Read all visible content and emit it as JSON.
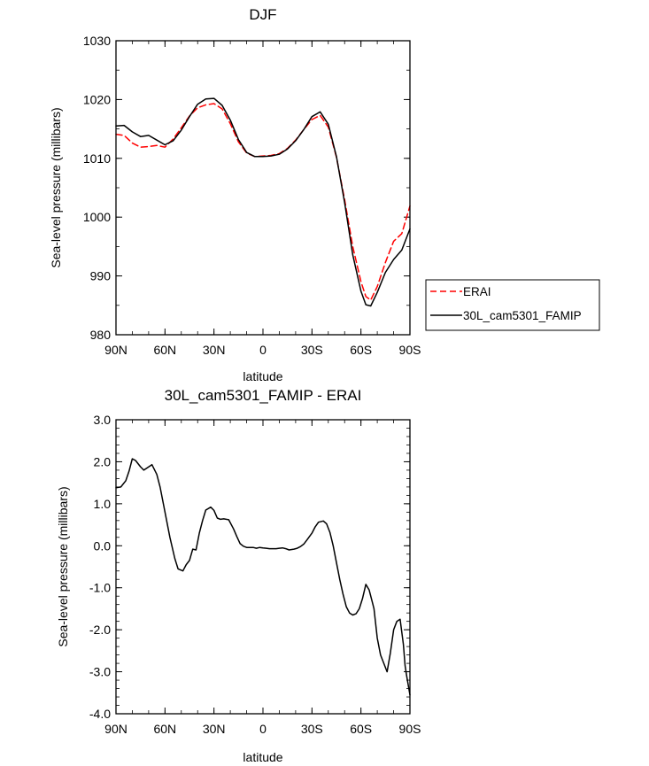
{
  "chart_data": [
    {
      "type": "line",
      "title": "DJF",
      "xlabel": "latitude",
      "ylabel": "Sea-level pressure (millibars)",
      "xlim": [
        -90,
        90
      ],
      "ylim": [
        980,
        1030
      ],
      "xticks": [
        {
          "value": -90,
          "label": "90N"
        },
        {
          "value": -60,
          "label": "60N"
        },
        {
          "value": -30,
          "label": "30N"
        },
        {
          "value": 0,
          "label": "0"
        },
        {
          "value": 30,
          "label": "30S"
        },
        {
          "value": 60,
          "label": "60S"
        },
        {
          "value": 90,
          "label": "90S"
        }
      ],
      "yticks": [
        {
          "value": 980,
          "label": "980"
        },
        {
          "value": 990,
          "label": "990"
        },
        {
          "value": 1000,
          "label": "1000"
        },
        {
          "value": 1010,
          "label": "1010"
        },
        {
          "value": 1020,
          "label": "1020"
        },
        {
          "value": 1030,
          "label": "1030"
        }
      ],
      "legend": {
        "position": "right"
      },
      "series": [
        {
          "name": "ERAI",
          "style": "dashed",
          "color": "#ff0000",
          "x": [
            -90,
            -85,
            -80,
            -75,
            -70,
            -65,
            -60,
            -55,
            -50,
            -45,
            -40,
            -35,
            -30,
            -25,
            -20,
            -15,
            -10,
            -5,
            0,
            5,
            10,
            15,
            20,
            25,
            30,
            35,
            40,
            45,
            50,
            55,
            60,
            63,
            66,
            70,
            75,
            80,
            85,
            90
          ],
          "y": [
            1014.1,
            1013.9,
            1012.6,
            1011.9,
            1012.0,
            1012.2,
            1011.9,
            1013.3,
            1015.2,
            1017.2,
            1018.6,
            1019.1,
            1019.3,
            1018.4,
            1015.9,
            1012.8,
            1010.9,
            1010.3,
            1010.4,
            1010.5,
            1010.8,
            1011.7,
            1013.1,
            1014.9,
            1016.6,
            1017.3,
            1015.3,
            1010.2,
            1003.0,
            995.0,
            989.0,
            986.5,
            985.9,
            988.2,
            992.3,
            995.9,
            997.2,
            1001.9
          ]
        },
        {
          "name": "30L_cam5301_FAMIP",
          "style": "solid",
          "color": "#000000",
          "x": [
            -90,
            -85,
            -80,
            -75,
            -70,
            -65,
            -60,
            -55,
            -50,
            -45,
            -40,
            -35,
            -30,
            -25,
            -20,
            -15,
            -10,
            -5,
            0,
            5,
            10,
            15,
            20,
            25,
            30,
            35,
            40,
            45,
            50,
            55,
            60,
            63,
            66,
            70,
            75,
            80,
            85,
            90
          ],
          "y": [
            1015.5,
            1015.6,
            1014.5,
            1013.7,
            1013.9,
            1013.1,
            1012.3,
            1013.0,
            1014.8,
            1017.1,
            1019.2,
            1020.1,
            1020.2,
            1019.0,
            1016.5,
            1013.2,
            1011.0,
            1010.3,
            1010.3,
            1010.4,
            1010.7,
            1011.6,
            1013.0,
            1014.9,
            1017.1,
            1017.9,
            1015.8,
            1010.3,
            1002.5,
            993.6,
            987.4,
            985.1,
            984.9,
            987.2,
            990.6,
            992.8,
            994.4,
            998.0
          ]
        }
      ]
    },
    {
      "type": "line",
      "title": "30L_cam5301_FAMIP - ERAI",
      "xlabel": "latitude",
      "ylabel": "Sea-level pressure (millibars)",
      "xlim": [
        -90,
        90
      ],
      "ylim": [
        -4.0,
        3.0
      ],
      "xticks": [
        {
          "value": -90,
          "label": "90N"
        },
        {
          "value": -60,
          "label": "60N"
        },
        {
          "value": -30,
          "label": "30N"
        },
        {
          "value": 0,
          "label": "0"
        },
        {
          "value": 30,
          "label": "30S"
        },
        {
          "value": 60,
          "label": "60S"
        },
        {
          "value": 90,
          "label": "90S"
        }
      ],
      "yticks": [
        {
          "value": -4.0,
          "label": "-4.0"
        },
        {
          "value": -3.0,
          "label": "-3.0"
        },
        {
          "value": -2.0,
          "label": "-2.0"
        },
        {
          "value": -1.0,
          "label": "-1.0"
        },
        {
          "value": 0.0,
          "label": "0.0"
        },
        {
          "value": 1.0,
          "label": "1.0"
        },
        {
          "value": 2.0,
          "label": "2.0"
        },
        {
          "value": 3.0,
          "label": "3.0"
        }
      ],
      "series": [
        {
          "name": "30L_cam5301_FAMIP - ERAI",
          "style": "solid",
          "color": "#000000",
          "x": [
            -90,
            -87,
            -84,
            -82,
            -80,
            -78,
            -75,
            -73,
            -71,
            -68,
            -65,
            -63,
            -61,
            -57,
            -54,
            -52,
            -49,
            -47,
            -45,
            -43,
            -41,
            -39,
            -37,
            -35,
            -32,
            -30,
            -28,
            -26,
            -24,
            -21,
            -18,
            -16,
            -14,
            -12,
            -10,
            -8,
            -6,
            -4,
            -2,
            0,
            2,
            4,
            6,
            8,
            10,
            12,
            14,
            16,
            19,
            21,
            23,
            25,
            27,
            30,
            32,
            34,
            37,
            39,
            41,
            43,
            45,
            47,
            49,
            51,
            53,
            55,
            57,
            59,
            61,
            63,
            65,
            67,
            68,
            70,
            72,
            74,
            76,
            78,
            80,
            82,
            84,
            86,
            87,
            88,
            90
          ],
          "y": [
            1.38,
            1.4,
            1.55,
            1.78,
            2.07,
            2.03,
            1.88,
            1.8,
            1.85,
            1.93,
            1.7,
            1.4,
            1.0,
            0.2,
            -0.3,
            -0.55,
            -0.6,
            -0.45,
            -0.35,
            -0.08,
            -0.1,
            0.3,
            0.6,
            0.85,
            0.92,
            0.84,
            0.66,
            0.63,
            0.64,
            0.62,
            0.4,
            0.22,
            0.05,
            -0.01,
            -0.04,
            -0.04,
            -0.04,
            -0.06,
            -0.04,
            -0.05,
            -0.06,
            -0.07,
            -0.07,
            -0.07,
            -0.06,
            -0.05,
            -0.07,
            -0.1,
            -0.08,
            -0.06,
            -0.02,
            0.04,
            0.14,
            0.3,
            0.45,
            0.56,
            0.59,
            0.52,
            0.32,
            0.0,
            -0.4,
            -0.8,
            -1.15,
            -1.45,
            -1.6,
            -1.65,
            -1.62,
            -1.5,
            -1.25,
            -0.92,
            -1.05,
            -1.35,
            -1.5,
            -2.2,
            -2.6,
            -2.8,
            -3.0,
            -2.55,
            -2.0,
            -1.8,
            -1.75,
            -2.35,
            -2.85,
            -3.1,
            -3.55
          ]
        }
      ]
    }
  ]
}
